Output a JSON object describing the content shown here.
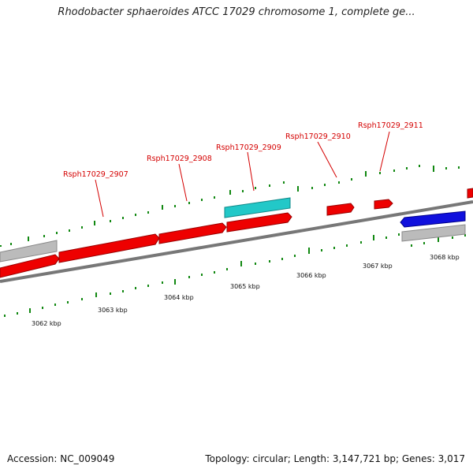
{
  "title": "Rhodobacter sphaeroides ATCC 17029 chromosome 1, complete ge...",
  "accession": "Accession: NC_009049",
  "summary": "Topology: circular; Length: 3,147,721 bp; Genes: 3,017",
  "gene_labels": [
    "Rsph17029_2907",
    "Rsph17029_2908",
    "Rsph17029_2909",
    "Rsph17029_2910",
    "Rsph17029_2911"
  ],
  "kbp_labels": [
    "3062 kbp",
    "3063 kbp",
    "3064 kbp",
    "3065 kbp",
    "3066 kbp",
    "3067 kbp",
    "3068 kbp"
  ],
  "colors": {
    "forward_gene": "#ee0000",
    "reverse_gene": "#1010dd",
    "rna_gene": "#22c8c8",
    "other_feature": "#bbbbbb",
    "backbone": "#777777",
    "tick": "#118811",
    "label": "#d40000"
  }
}
